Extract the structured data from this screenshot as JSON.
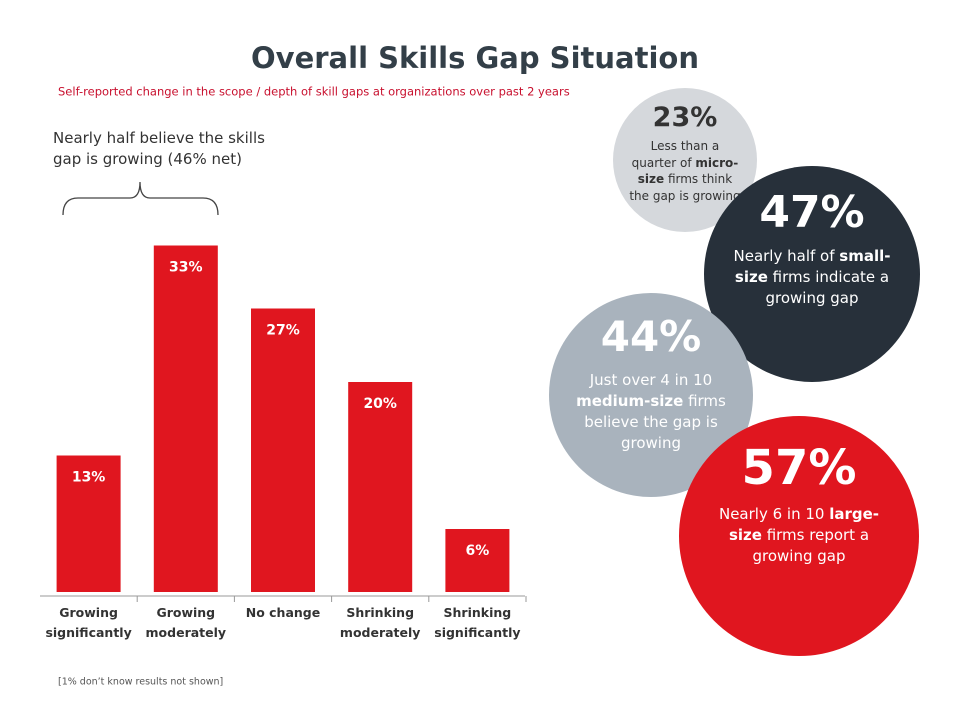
{
  "chart_data": {
    "type": "bar",
    "title": "Overall Skills Gap Situation",
    "subtitle": "Self-reported change in the scope / depth of skill gaps at organizations over past 2 years",
    "annotation": "Nearly half believe the skills gap is growing (46% net)",
    "footnote": "[1% don’t know results not shown]",
    "categories": [
      "Growing significantly",
      "Growing moderately",
      "No change",
      "Shrinking moderately",
      "Shrinking significantly"
    ],
    "values": [
      13,
      33,
      27,
      20,
      6
    ],
    "value_labels": [
      "13%",
      "33%",
      "27%",
      "20%",
      "6%"
    ],
    "color": "#e0161f",
    "callouts": [
      {
        "value": 23,
        "value_label": "23%",
        "text_before": "Less than a quarter of ",
        "text_bold": "micro-size",
        "text_after": " firms think the gap is growing",
        "color": "#d5d8dc",
        "text_color": "#333333"
      },
      {
        "value": 47,
        "value_label": "47%",
        "text_before": "Nearly half of ",
        "text_bold": "small-size",
        "text_after": " firms indicate a growing gap",
        "color": "#27303a",
        "text_color": "#ffffff"
      },
      {
        "value": 44,
        "value_label": "44%",
        "text_before": "Just over 4 in 10 ",
        "text_bold": "medium-size",
        "text_after": " firms believe the gap is growing",
        "color": "#a9b3bd",
        "text_color": "#ffffff"
      },
      {
        "value": 57,
        "value_label": "57%",
        "text_before": "Nearly 6 in 10 ",
        "text_bold": "large-size",
        "text_after": " firms report a growing gap",
        "color": "#e0161f",
        "text_color": "#ffffff"
      }
    ]
  }
}
